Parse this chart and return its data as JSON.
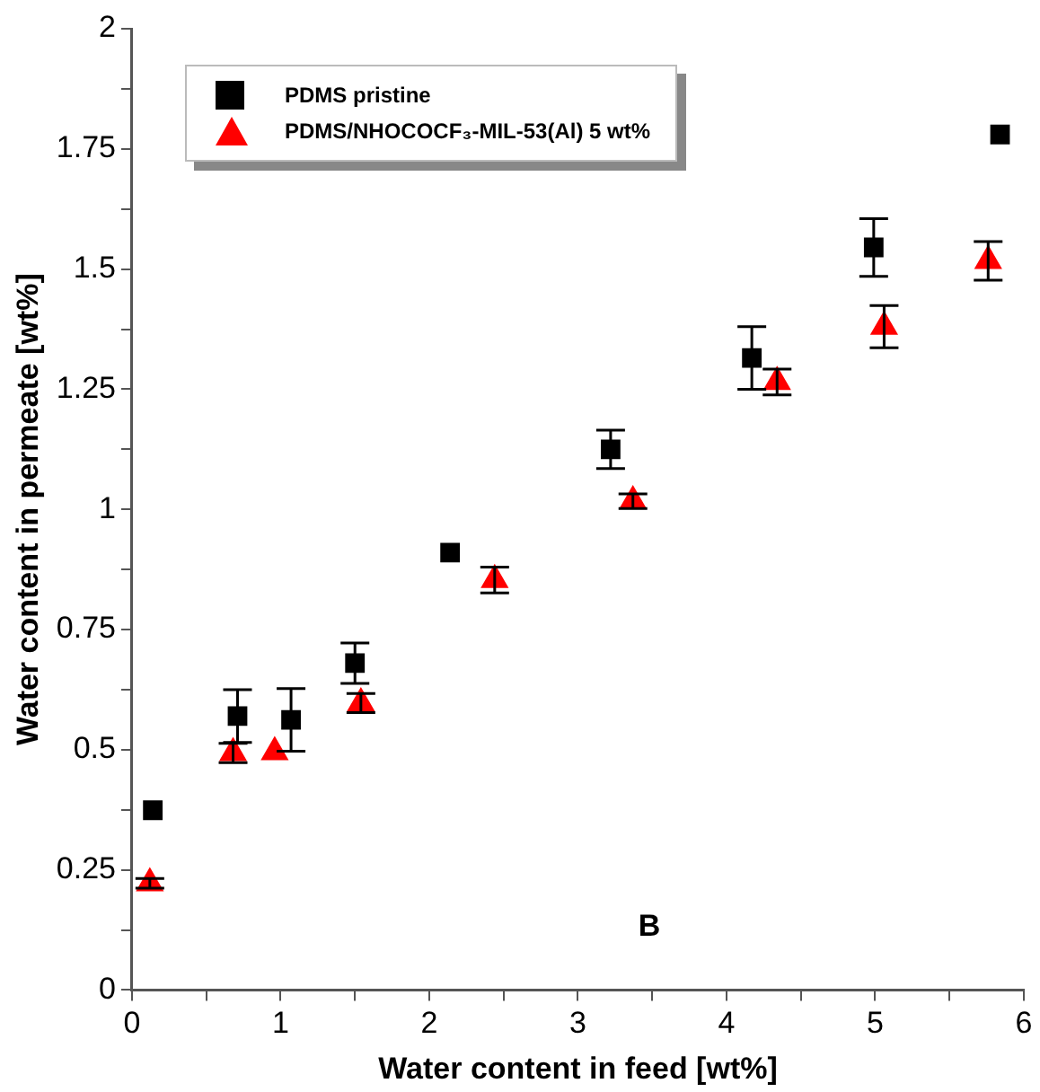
{
  "chart_data": {
    "type": "scatter",
    "xlabel": "Water content in feed [wt%]",
    "ylabel": "Water content in permeate [wt%]",
    "xlim": [
      0,
      6
    ],
    "xticks": [
      0,
      {
        "value": 0.5,
        "label": null
      },
      1,
      {
        "value": 1.5,
        "label": null
      },
      2,
      {
        "value": 2.5,
        "label": null
      },
      3,
      {
        "value": 3.5,
        "label": null
      },
      4,
      {
        "value": 4.5,
        "label": null
      },
      5,
      {
        "value": 5.5,
        "label": null
      },
      6
    ],
    "ylim": [
      0,
      2
    ],
    "yticks": [
      0,
      {
        "value": 0.125,
        "label": null
      },
      0.25,
      {
        "value": 0.375,
        "label": null
      },
      0.5,
      {
        "value": 0.625,
        "label": null
      },
      0.75,
      {
        "value": 0.875,
        "label": null
      },
      1,
      {
        "value": 1.125,
        "label": null
      },
      1.25,
      {
        "value": 1.375,
        "label": null
      },
      1.5,
      {
        "value": 1.625,
        "label": null
      },
      1.75,
      {
        "value": 1.875,
        "label": null
      },
      2
    ],
    "grid": false,
    "legend": "top left",
    "series": [
      {
        "name": "PDMS pristine",
        "color": "#000000",
        "marker": "square",
        "x": [
          0.14,
          0.71,
          1.07,
          1.5,
          2.14,
          3.22,
          4.17,
          4.99,
          5.84
        ],
        "values": [
          0.374,
          0.57,
          0.562,
          0.68,
          0.91,
          1.125,
          1.315,
          1.545,
          1.78
        ],
        "errors": [
          null,
          0.055,
          0.065,
          0.042,
          null,
          0.04,
          0.065,
          0.06,
          null
        ]
      },
      {
        "name": "PDMS/NHOCOCF₃-MIL-53(Al) 5 wt%",
        "color": "#ff0000",
        "marker": "triangle",
        "x": [
          0.12,
          0.68,
          0.96,
          1.54,
          2.44,
          3.37,
          4.34,
          5.06,
          5.76
        ],
        "values": [
          0.222,
          0.493,
          0.495,
          0.597,
          0.853,
          1.017,
          1.265,
          1.38,
          1.517
        ],
        "errors": [
          0.01,
          0.02,
          null,
          0.02,
          0.027,
          0.015,
          0.027,
          0.044,
          0.04
        ]
      }
    ],
    "annotations": [
      "B"
    ]
  }
}
